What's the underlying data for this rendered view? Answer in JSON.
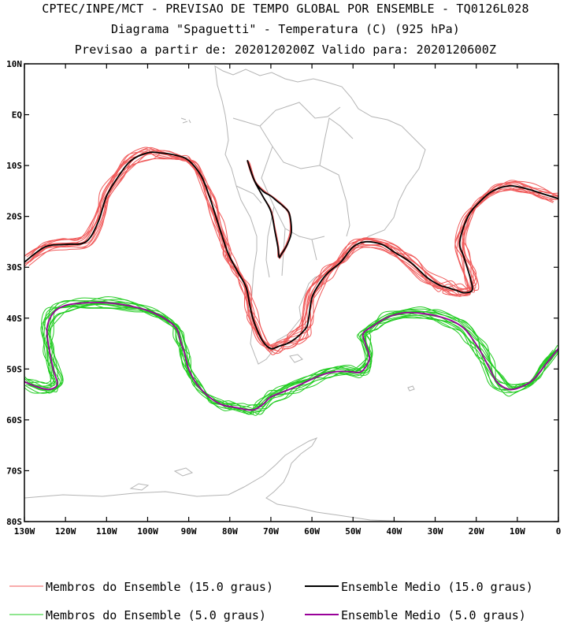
{
  "titles": {
    "line1": "CPTEC/INPE/MCT - PREVISAO DE TEMPO GLOBAL POR ENSEMBLE - TQ0126L028",
    "line2": "Diagrama \"Spaguetti\" - Temperatura (C) (925 hPa)",
    "line3": "Previsao a partir de: 2020120200Z  Valido para: 2020120600Z"
  },
  "chart_data": {
    "type": "line",
    "subtype": "spaghetti-contour-map",
    "title": "Diagrama \"Spaguetti\" - Temperatura (C) (925 hPa)",
    "variable": "Temperatura (C)",
    "level": "925 hPa",
    "init_time": "2020120200Z",
    "valid_time": "2020120600Z",
    "xlim": [
      -130,
      0
    ],
    "ylim": [
      -80,
      10
    ],
    "x_ticks": [
      {
        "value": -130,
        "label": "130W"
      },
      {
        "value": -120,
        "label": "120W"
      },
      {
        "value": -110,
        "label": "110W"
      },
      {
        "value": -100,
        "label": "100W"
      },
      {
        "value": -90,
        "label": "90W"
      },
      {
        "value": -80,
        "label": "80W"
      },
      {
        "value": -70,
        "label": "70W"
      },
      {
        "value": -60,
        "label": "60W"
      },
      {
        "value": -50,
        "label": "50W"
      },
      {
        "value": -40,
        "label": "40W"
      },
      {
        "value": -30,
        "label": "30W"
      },
      {
        "value": -20,
        "label": "20W"
      },
      {
        "value": -10,
        "label": "10W"
      },
      {
        "value": 0,
        "label": "0"
      }
    ],
    "y_ticks": [
      {
        "value": 10,
        "label": "10N"
      },
      {
        "value": 0,
        "label": "EQ"
      },
      {
        "value": -10,
        "label": "10S"
      },
      {
        "value": -20,
        "label": "20S"
      },
      {
        "value": -30,
        "label": "30S"
      },
      {
        "value": -40,
        "label": "40S"
      },
      {
        "value": -50,
        "label": "50S"
      },
      {
        "value": -60,
        "label": "60S"
      },
      {
        "value": -70,
        "label": "70S"
      },
      {
        "value": -80,
        "label": "80S"
      }
    ],
    "legend": [
      {
        "label": "Membros do Ensemble (15.0 graus)",
        "color": "#f05a5a"
      },
      {
        "label": "Ensemble Medio (15.0 graus)",
        "color": "#000000"
      },
      {
        "label": "Membros do Ensemble (5.0 graus)",
        "color": "#22cc22"
      },
      {
        "label": "Ensemble Medio (5.0 graus)",
        "color": "#990099"
      }
    ],
    "series": [
      {
        "name": "Ensemble Medio (15.0 graus)",
        "color": "#000000",
        "members": 1,
        "x": [
          -130,
          -125,
          -120,
          -115,
          -112,
          -110,
          -107,
          -104,
          -100,
          -97,
          -93,
          -90,
          -87,
          -85,
          -83,
          -81,
          -80,
          -78,
          -76,
          -75,
          -74,
          -72,
          -70,
          -68,
          -66,
          -64,
          -62,
          -61,
          -60,
          -58,
          -56,
          -53,
          -50,
          -47,
          -43,
          -40,
          -36,
          -32,
          -29,
          -27,
          -25,
          -23,
          -21,
          -21.5,
          -23,
          -24,
          -22,
          -19,
          -16,
          -12,
          -8,
          -4,
          0
        ],
        "y": [
          -29,
          -26,
          -25.5,
          -25,
          -21,
          -16,
          -12,
          -9,
          -7.5,
          -7.5,
          -8,
          -9,
          -12,
          -16,
          -21,
          -26,
          -28,
          -31,
          -34,
          -38,
          -41,
          -44.5,
          -46,
          -45.5,
          -45,
          -44,
          -42.5,
          -41,
          -36,
          -33,
          -31,
          -29,
          -26,
          -25,
          -25.5,
          -27,
          -29,
          -32,
          -33.5,
          -34,
          -34.5,
          -35,
          -34.5,
          -32,
          -28,
          -25,
          -20,
          -17,
          -15,
          -14,
          -14.5,
          -15.5,
          -16.5
        ]
      },
      {
        "name": "Ensemble Medio (15.0 graus) - Andes",
        "color": "#000000",
        "members": 1,
        "x": [
          -75.5,
          -74,
          -72,
          -70,
          -68.5,
          -67,
          -65.5,
          -65,
          -66,
          -67.5,
          -68,
          -68.3,
          -69,
          -70,
          -72,
          -74,
          -75.5
        ],
        "y": [
          -9.5,
          -13,
          -15,
          -16,
          -17,
          -18,
          -19.5,
          -23,
          -25.5,
          -27.5,
          -28,
          -26,
          -23,
          -19,
          -16,
          -13,
          -9.5
        ]
      },
      {
        "name": "Ensemble Medio (5.0 graus)",
        "color": "#990099",
        "members": 1,
        "x": [
          -130,
          -127,
          -124,
          -122,
          -123,
          -124,
          -124.5,
          -123,
          -120,
          -115,
          -110,
          -105,
          -100,
          -96,
          -93,
          -92,
          -91,
          -90,
          -88,
          -85,
          -82,
          -79,
          -76,
          -74,
          -72,
          -70,
          -67,
          -64,
          -60,
          -57,
          -54,
          -51,
          -48,
          -46,
          -47,
          -47.5,
          -45,
          -42,
          -38,
          -34,
          -30,
          -26,
          -23,
          -21,
          -19,
          -17,
          -15,
          -12,
          -9,
          -6,
          -3,
          0
        ],
        "y": [
          -52.5,
          -53.5,
          -54,
          -53,
          -50,
          -46,
          -42,
          -39,
          -37.5,
          -37,
          -37,
          -37.5,
          -38.5,
          -40,
          -42,
          -44.5,
          -47,
          -50,
          -53,
          -55.5,
          -57,
          -57.5,
          -58,
          -58,
          -57,
          -55.5,
          -54.5,
          -53.5,
          -52,
          -51,
          -50.5,
          -50.5,
          -50.5,
          -48,
          -45,
          -43,
          -41.5,
          -40,
          -39,
          -39,
          -39.5,
          -40.5,
          -42,
          -44,
          -46.5,
          -49.5,
          -52.5,
          -54,
          -53.5,
          -52,
          -49,
          -46
        ]
      }
    ]
  }
}
